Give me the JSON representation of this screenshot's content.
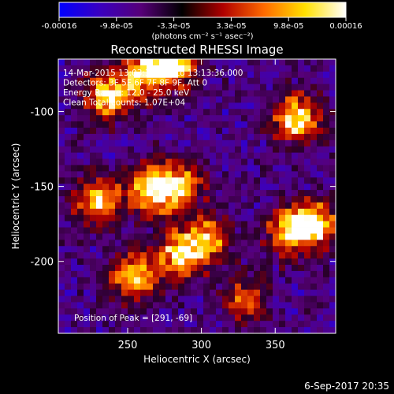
{
  "chart_data": {
    "type": "heatmap",
    "title": "Reconstructed RHESSI Image",
    "xlabel": "Heliocentric X (arcsec)",
    "ylabel": "Heliocentric Y (arcsec)",
    "xlim": [
      203,
      391
    ],
    "ylim": [
      -248,
      -65
    ],
    "x_ticks": [
      250,
      300,
      350
    ],
    "y_ticks": [
      -100,
      -150,
      -200
    ],
    "colorbar": {
      "ticks": [
        "-0.00016",
        "-9.8e-05",
        "-3.3e-05",
        "3.3e-05",
        "9.8e-05",
        "0.00016"
      ],
      "range": [
        -0.00016,
        0.00016
      ],
      "units": "(photons cm⁻² s⁻¹ asec⁻²)",
      "colors": [
        "#0000ff",
        "#3a00c0",
        "#560078",
        "#000000",
        "#b00000",
        "#ff6a00",
        "#ffe000",
        "#ffffff"
      ]
    },
    "annotations": [
      "14-Mar-2015 13:03:36.000 to 13:13:36.000",
      "Detectors: 3F 5F 6F 7F 8F 9F, Att 0",
      "Energy Range: 12.0 - 25.0 keV",
      "Clean     Total counts: 1.07E+04"
    ],
    "peak_label": "Position of Peak = [291, -69]",
    "bright_regions": [
      {
        "x": 236,
        "y": -90,
        "level": 0.9
      },
      {
        "x": 260,
        "y": -75,
        "level": 0.8
      },
      {
        "x": 282,
        "y": -68,
        "level": 1.0
      },
      {
        "x": 230,
        "y": -160,
        "level": 0.9
      },
      {
        "x": 265,
        "y": -152,
        "level": 0.9
      },
      {
        "x": 285,
        "y": -150,
        "level": 0.8
      },
      {
        "x": 255,
        "y": -210,
        "level": 0.9
      },
      {
        "x": 285,
        "y": -195,
        "level": 0.85
      },
      {
        "x": 305,
        "y": -185,
        "level": 0.7
      },
      {
        "x": 365,
        "y": -105,
        "level": 0.95
      },
      {
        "x": 360,
        "y": -180,
        "level": 0.9
      },
      {
        "x": 380,
        "y": -175,
        "level": 0.8
      },
      {
        "x": 330,
        "y": -225,
        "level": 0.6
      }
    ]
  },
  "timestamp": "6-Sep-2017 20:35"
}
